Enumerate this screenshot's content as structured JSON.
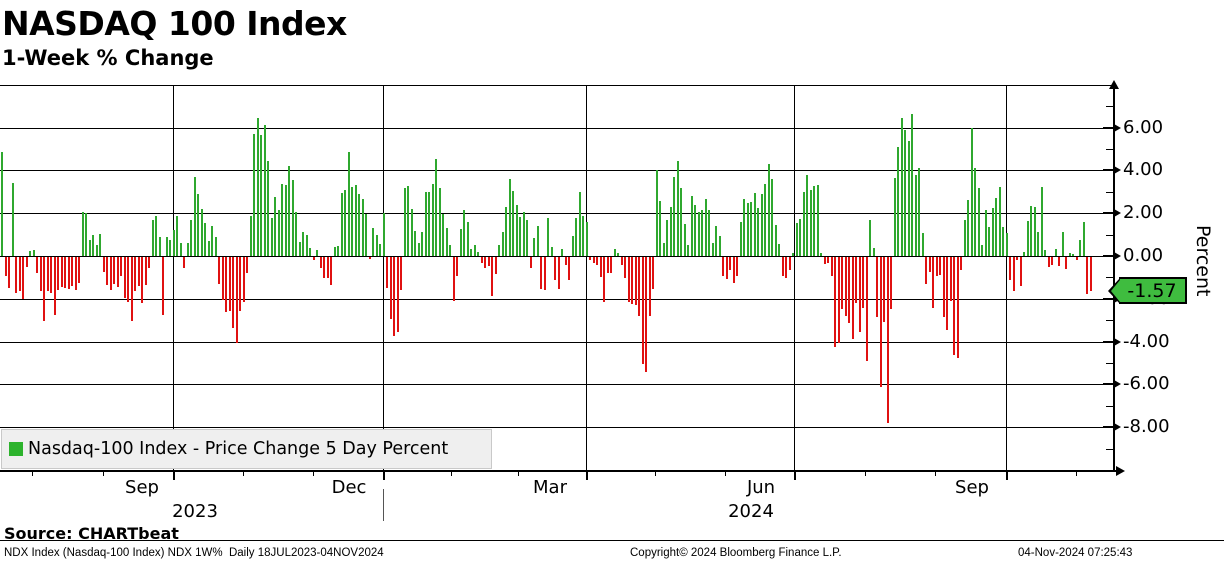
{
  "header": {
    "title": "NASDAQ 100 Index",
    "subtitle": "1-Week % Change"
  },
  "legend": {
    "label": "Nasdaq-100 Index - Price Change 5 Day Percent",
    "swatch_color": "#2db32d"
  },
  "last_value": {
    "label": "-1.57",
    "bg_color": "#3fbc3f"
  },
  "source": {
    "label": "Source: CHARTbeat"
  },
  "footer": {
    "left": "NDX Index (Nasdaq-100 Index) NDX 1W%  Daily 18JUL2023-04NOV2024",
    "center": "Copyright© 2024 Bloomberg Finance L.P.",
    "right": "04-Nov-2024 07:25:43"
  },
  "chart_data": {
    "type": "bar",
    "title": "NASDAQ 100 Index 1-Week % Change",
    "series_name": "Nasdaq-100 Index - Price Change 5 Day Percent",
    "ylabel": "Percent",
    "ylim": [
      -10,
      8
    ],
    "grid": true,
    "legend_position": "bottom-left",
    "date_range": "18JUL2023-04NOV2024",
    "frequency": "Daily",
    "last_value": -1.57,
    "colors": {
      "positive": "#2fa82f",
      "negative": "#e01111"
    },
    "y_ticks": [
      {
        "value": 6,
        "label": "6.00"
      },
      {
        "value": 4,
        "label": "4.00"
      },
      {
        "value": 2,
        "label": "2.00"
      },
      {
        "value": 0,
        "label": "0.00"
      },
      {
        "value": -2,
        "label": "-2.00"
      },
      {
        "value": -4,
        "label": "-4.00"
      },
      {
        "value": -6,
        "label": "-6.00"
      },
      {
        "value": -8,
        "label": "-8.00"
      }
    ],
    "x_month_labels": [
      {
        "label": "Sep",
        "x": 142
      },
      {
        "label": "Dec",
        "x": 349
      },
      {
        "label": "Mar",
        "x": 550
      },
      {
        "label": "Jun",
        "x": 761
      },
      {
        "label": "Sep",
        "x": 972
      }
    ],
    "x_year_labels": [
      {
        "label": "2023",
        "x": 195
      },
      {
        "label": "2024",
        "x": 751
      }
    ],
    "values": [
      4.85,
      -0.9,
      -1.45,
      3.4,
      -1.7,
      -1.6,
      -1.95,
      -0.45,
      0.25,
      0.3,
      -0.75,
      -1.6,
      -3.0,
      -1.6,
      -1.7,
      -2.7,
      -1.55,
      -1.4,
      -1.45,
      -1.5,
      -1.35,
      -1.55,
      -1.2,
      2.05,
      2.0,
      0.75,
      1.0,
      0.5,
      1.05,
      -0.7,
      -1.3,
      -1.55,
      -1.25,
      -1.4,
      -0.9,
      -1.9,
      -2.1,
      -3.0,
      -1.6,
      -1.35,
      -2.15,
      -1.3,
      -0.5,
      1.7,
      1.85,
      0.9,
      -2.7,
      0.9,
      0.74,
      1.2,
      1.86,
      0.6,
      -0.5,
      0.6,
      1.67,
      3.7,
      2.9,
      2.2,
      1.55,
      0.7,
      1.4,
      0.9,
      -1.27,
      -2.0,
      -2.56,
      -2.5,
      -3.3,
      -4.0,
      -2.5,
      -2.1,
      -0.73,
      1.86,
      5.7,
      6.45,
      5.66,
      6.14,
      4.43,
      1.78,
      2.76,
      2.14,
      3.35,
      3.3,
      4.2,
      3.53,
      2.06,
      0.67,
      1.13,
      0.98,
      0.36,
      -0.15,
      0.3,
      -0.5,
      -1.0,
      -1.0,
      -1.3,
      0.4,
      0.45,
      2.96,
      3.07,
      4.88,
      3.22,
      3.3,
      2.88,
      2.68,
      1.98,
      -0.1,
      1.29,
      0.98,
      0.56,
      2.03,
      -1.45,
      -2.9,
      -3.7,
      -3.5,
      -1.55,
      3.2,
      3.27,
      2.2,
      1.15,
      0.6,
      1.1,
      3.0,
      3.0,
      3.35,
      4.54,
      3.2,
      1.96,
      1.3,
      0.5,
      -2.05,
      -0.9,
      1.24,
      2.17,
      1.6,
      0.31,
      0.51,
      0.2,
      -0.3,
      -0.5,
      -0.4,
      -1.8,
      -0.8,
      0.5,
      1.1,
      2.3,
      3.6,
      3.05,
      2.4,
      1.8,
      2.06,
      1.7,
      -0.5,
      0.82,
      1.4,
      -1.5,
      -1.56,
      1.79,
      0.42,
      -1.08,
      -1.5,
      0.31,
      -0.37,
      -1.08,
      0.93,
      1.76,
      3.0,
      1.86,
      1.6,
      -0.12,
      -0.26,
      -0.37,
      -0.93,
      -2.1,
      -0.73,
      -0.73,
      0.31,
      0.15,
      -0.37,
      -1.0,
      -2.1,
      -2.2,
      -2.25,
      -2.77,
      -4.98,
      -5.37,
      -2.77,
      -1.5,
      4.03,
      2.55,
      0.6,
      1.67,
      2.3,
      3.7,
      4.46,
      3.2,
      1.5,
      0.5,
      2.8,
      2.4,
      2.06,
      2.14,
      2.68,
      2.14,
      0.59,
      1.4,
      0.94,
      -0.88,
      -1.04,
      -0.6,
      -1.2,
      -0.9,
      1.6,
      2.68,
      2.48,
      2.53,
      2.94,
      2.22,
      2.9,
      3.38,
      4.3,
      3.6,
      1.44,
      0.56,
      -0.88,
      -1.0,
      -0.6,
      0.12,
      1.55,
      1.75,
      3.0,
      3.8,
      3.07,
      3.26,
      3.3,
      0.12,
      -0.31,
      -0.27,
      -0.9,
      -4.2,
      -4.0,
      -2.43,
      -2.74,
      -3.1,
      -3.83,
      -2.17,
      -3.52,
      -2.39,
      -4.85,
      1.7,
      0.36,
      -2.82,
      -6.08,
      -3.06,
      -7.75,
      -2.43,
      3.64,
      5.08,
      6.43,
      5.89,
      5.36,
      6.63,
      3.8,
      4.12,
      1.08,
      -1.27,
      -0.68,
      -2.39,
      -0.88,
      -0.84,
      -2.79,
      -3.41,
      -2.05,
      -4.57,
      -4.71,
      -0.62,
      1.67,
      2.6,
      5.97,
      4.1,
      3.2,
      0.51,
      2.17,
      1.36,
      2.25,
      2.73,
      3.22,
      1.36,
      1.06,
      -1.08,
      -1.58,
      -0.15,
      -1.35,
      0.2,
      1.64,
      2.33,
      2.3,
      1.13,
      3.22,
      0.28,
      -0.47,
      -0.37,
      0.31,
      -0.42,
      1.13,
      -0.58,
      0.15,
      0.1,
      -0.16,
      0.74,
      1.6,
      -1.71,
      -1.57
    ]
  }
}
